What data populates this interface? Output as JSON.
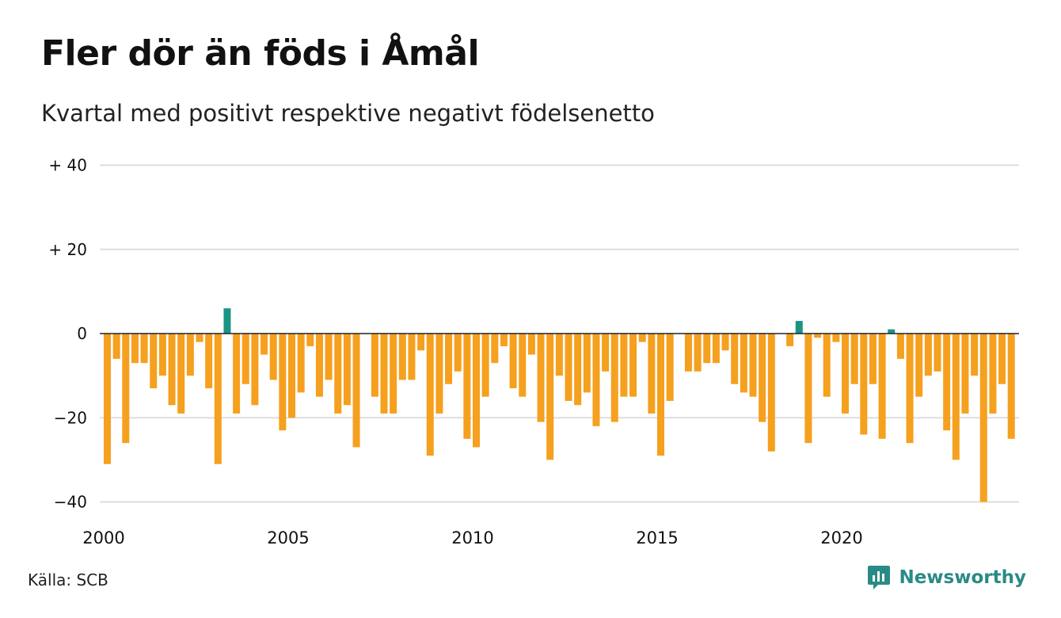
{
  "title": "Fler dör än föds i Åmål",
  "subtitle": "Kvartal med positivt respektive negativt födelsenetto",
  "source": "Källa: SCB",
  "brand": {
    "name": "Newsworthy",
    "icon": "newsworthy-logo-icon"
  },
  "colors": {
    "positive": "#1a9485",
    "negative": "#f5a01e",
    "grid": "#dddddd",
    "zero_line": "#222222"
  },
  "chart_data": {
    "type": "bar",
    "x_start_year": 2000,
    "periods_per_year": 4,
    "values": [
      -31,
      -6,
      -26,
      -7,
      -7,
      -13,
      -10,
      -17,
      -19,
      -10,
      -2,
      -13,
      -31,
      6,
      -19,
      -12,
      -17,
      -5,
      -11,
      -23,
      -20,
      -14,
      -3,
      -15,
      -11,
      -19,
      -17,
      -27,
      0,
      -15,
      -19,
      -19,
      -11,
      -11,
      -4,
      -29,
      -19,
      -12,
      -9,
      -25,
      -27,
      -15,
      -7,
      -3,
      -13,
      -15,
      -5,
      -21,
      -30,
      -10,
      -16,
      -17,
      -14,
      -22,
      -9,
      -21,
      -15,
      -15,
      -2,
      -19,
      -29,
      -16,
      0,
      -9,
      -9,
      -7,
      -7,
      -4,
      -12,
      -14,
      -15,
      -21,
      -28,
      0,
      -3,
      3,
      -26,
      -1,
      -15,
      -2,
      -19,
      -12,
      -24,
      -12,
      -25,
      1,
      -6,
      -26,
      -15,
      -10,
      -9,
      -23,
      -30,
      -19,
      -10,
      -40,
      -19,
      -12,
      -25
    ],
    "ylim": [
      -40,
      40
    ],
    "yticks": [
      40,
      20,
      0,
      -20,
      -40
    ],
    "ytick_labels": [
      "+ 40",
      "+ 20",
      "0",
      "−20",
      "−40"
    ],
    "xticks": [
      "2000",
      "2005",
      "2010",
      "2015",
      "2020"
    ],
    "grid": true
  }
}
